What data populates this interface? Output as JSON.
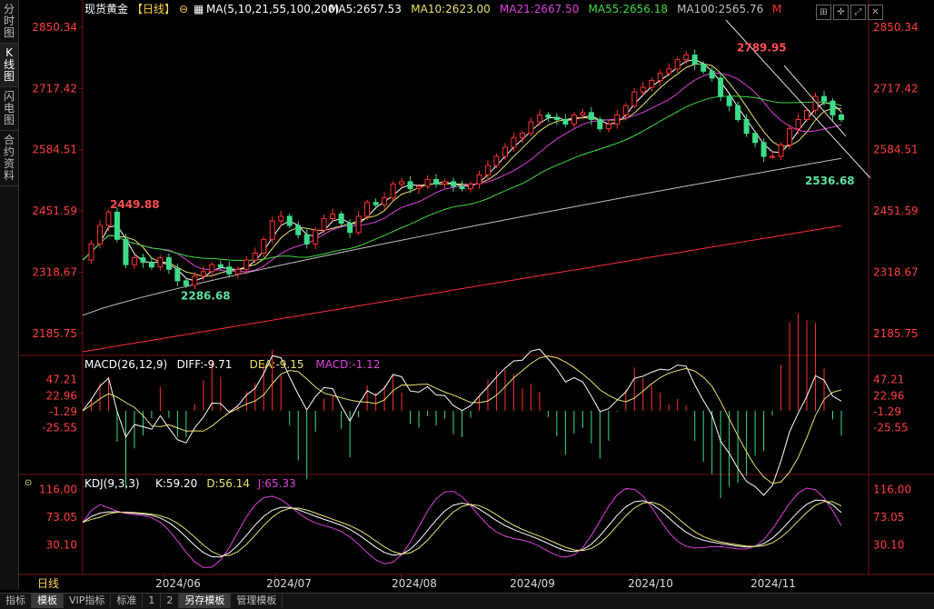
{
  "left_tabs": [
    "分时图",
    "K线图",
    "闪电图",
    "合约资料"
  ],
  "main_header": {
    "symbol": "现货黄金",
    "period": "【日线】",
    "ma_params": "MA(5,10,21,55,100,200)",
    "ma_values": [
      {
        "label": "MA5:2657.53",
        "color": "#ffffff"
      },
      {
        "label": "MA10:2623.00",
        "color": "#e8e36a"
      },
      {
        "label": "MA21:2667.50",
        "color": "#e040e0"
      },
      {
        "label": "MA55:2656.18",
        "color": "#3ddc3d"
      },
      {
        "label": "MA100:2565.76",
        "color": "#bfbfbf"
      },
      {
        "label": "M",
        "color": "#ff3030"
      }
    ]
  },
  "macd_header": {
    "name": "MACD(26,12,9)",
    "diff": "DIFF:-9.71",
    "dea": "DEA:-9.15",
    "macd": "MACD:-1.12"
  },
  "kdj_header": {
    "name": "KDJ(9,3,3)",
    "k": "K:59.20",
    "d": "D:56.14",
    "j": "J:65.33"
  },
  "bottom_left_label": "日线",
  "bottom_tabs": [
    "指标",
    "模板",
    "VIP指标",
    "标准",
    "1",
    "2",
    "另存模板",
    "管理模板"
  ],
  "colors": {
    "up": "#ff3030",
    "down": "#3ddc8a",
    "axis_text": "#ff4040",
    "ma5": "#ffffff",
    "ma10": "#e8e36a",
    "ma21": "#e040e0",
    "ma55": "#3ddc3d",
    "ma100": "#bfbfbf",
    "ma200": "#ff3030"
  },
  "chart_data": [
    {
      "type": "candlestick",
      "title": "现货黄金【日线】",
      "x_ticks": [
        "2024/06",
        "2024/07",
        "2024/08",
        "2024/09",
        "2024/10",
        "2024/11"
      ],
      "y_ticks": [
        "2850.34",
        "2717.42",
        "2584.51",
        "2451.59",
        "2318.67",
        "2185.75"
      ],
      "ylim": [
        2140,
        2870
      ],
      "annotations": [
        {
          "text": "2449.88",
          "value": 2449.88,
          "kind": "high"
        },
        {
          "text": "2286.68",
          "value": 2286.68,
          "kind": "low"
        },
        {
          "text": "2789.95",
          "value": 2789.95,
          "kind": "high"
        },
        {
          "text": "2536.68",
          "value": 2536.68,
          "kind": "low"
        }
      ],
      "close_path": [
        2345,
        2380,
        2420,
        2449,
        2390,
        2335,
        2350,
        2340,
        2330,
        2350,
        2325,
        2300,
        2290,
        2310,
        2320,
        2335,
        2330,
        2315,
        2325,
        2345,
        2360,
        2390,
        2430,
        2440,
        2420,
        2400,
        2380,
        2410,
        2435,
        2445,
        2425,
        2405,
        2440,
        2470,
        2465,
        2480,
        2510,
        2515,
        2500,
        2505,
        2520,
        2510,
        2515,
        2505,
        2500,
        2510,
        2530,
        2550,
        2570,
        2590,
        2610,
        2620,
        2645,
        2660,
        2655,
        2650,
        2640,
        2660,
        2665,
        2650,
        2630,
        2640,
        2660,
        2680,
        2710,
        2720,
        2735,
        2750,
        2760,
        2780,
        2790,
        2770,
        2755,
        2740,
        2700,
        2680,
        2650,
        2620,
        2600,
        2570,
        2570,
        2595,
        2630,
        2650,
        2670,
        2700,
        2690,
        2660,
        2650
      ],
      "ma_series": [
        {
          "name": "MA5",
          "values_start_end": [
            2330,
            2657.53
          ]
        },
        {
          "name": "MA10",
          "values_start_end": [
            2330,
            2623.0
          ]
        },
        {
          "name": "MA21",
          "values_start_end": [
            2330,
            2667.5
          ]
        },
        {
          "name": "MA55",
          "values_start_end": [
            2270,
            2656.18
          ]
        },
        {
          "name": "MA100",
          "values_start_end": [
            2225,
            2565.76
          ]
        },
        {
          "name": "MA200",
          "values_start_end": [
            2146,
            2420
          ]
        }
      ]
    },
    {
      "type": "bar+line",
      "title": "MACD(26,12,9)",
      "y_ticks": [
        "47.21",
        "22.96",
        "-1.29",
        "-25.55"
      ],
      "ylim": [
        -55,
        55
      ],
      "diff_last": -9.71,
      "dea_last": -9.15,
      "macd_last": -1.12
    },
    {
      "type": "line",
      "title": "KDJ(9,3,3)",
      "y_ticks": [
        "116.00",
        "73.05",
        "30.10"
      ],
      "ylim": [
        -10,
        125
      ],
      "k_last": 59.2,
      "d_last": 56.14,
      "j_last": 65.33
    }
  ]
}
